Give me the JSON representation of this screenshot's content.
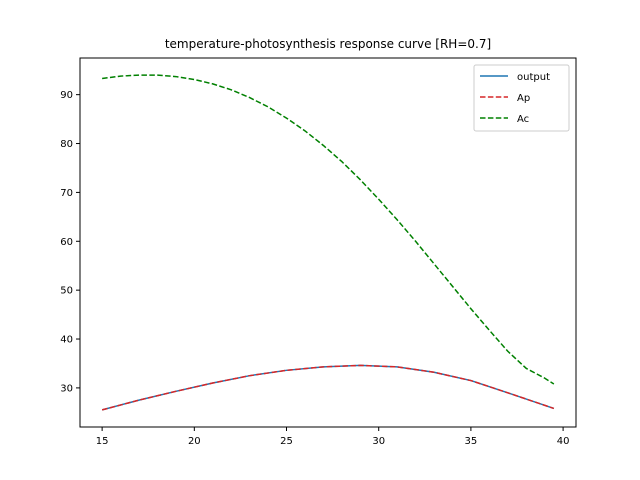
{
  "chart_data": {
    "type": "line",
    "title": "temperature-photosynthesis response curve [RH=0.7]",
    "xlabel": "",
    "ylabel": "",
    "xlim": [
      13.8,
      40.7
    ],
    "ylim": [
      22.0,
      97.5
    ],
    "xticks": [
      15,
      20,
      25,
      30,
      35,
      40
    ],
    "yticks": [
      30,
      40,
      50,
      60,
      70,
      80,
      90
    ],
    "grid": false,
    "legend_position": "top-right",
    "series": [
      {
        "name": "output",
        "color": "#1f77b4",
        "style": "solid",
        "x": [
          15,
          17,
          19,
          21,
          23,
          25,
          27,
          29,
          31,
          33,
          35,
          37,
          39.5
        ],
        "y": [
          25.5,
          27.5,
          29.3,
          31.0,
          32.5,
          33.6,
          34.3,
          34.6,
          34.3,
          33.2,
          31.5,
          29.0,
          25.8
        ]
      },
      {
        "name": "Ap",
        "color": "#d62728",
        "style": "dashed",
        "x": [
          15,
          17,
          19,
          21,
          23,
          25,
          27,
          29,
          31,
          33,
          35,
          37,
          39.5
        ],
        "y": [
          25.5,
          27.5,
          29.3,
          31.0,
          32.5,
          33.6,
          34.3,
          34.6,
          34.3,
          33.2,
          31.5,
          29.0,
          25.8
        ]
      },
      {
        "name": "Ac",
        "color": "#008000",
        "style": "dashed",
        "x": [
          15,
          16,
          17,
          18,
          19,
          20,
          21,
          22,
          23,
          24,
          25,
          26,
          27,
          28,
          29,
          30,
          31,
          32,
          33,
          34,
          35,
          36,
          37,
          38,
          39,
          39.5
        ],
        "y": [
          93.3,
          93.8,
          94.0,
          94.0,
          93.7,
          93.1,
          92.2,
          91.0,
          89.4,
          87.5,
          85.2,
          82.6,
          79.6,
          76.3,
          72.6,
          68.6,
          64.4,
          60.0,
          55.4,
          50.8,
          46.2,
          41.8,
          37.5,
          34.0,
          32.0,
          30.8
        ]
      }
    ]
  }
}
